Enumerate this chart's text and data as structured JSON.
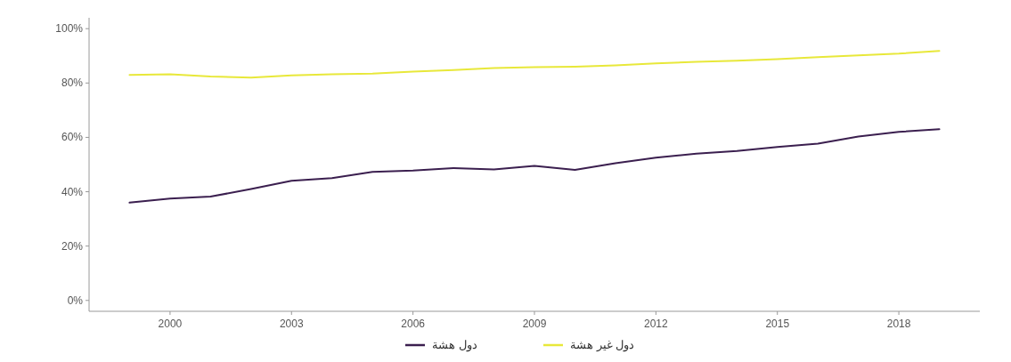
{
  "chart_data": {
    "type": "line",
    "x": [
      1999,
      2000,
      2001,
      2002,
      2003,
      2004,
      2005,
      2006,
      2007,
      2008,
      2009,
      2010,
      2011,
      2012,
      2013,
      2014,
      2015,
      2016,
      2017,
      2018,
      2019
    ],
    "series": [
      {
        "name": "دول هشة",
        "color": "#3b1f4f",
        "values": [
          36,
          37.5,
          38.2,
          41,
          44,
          45,
          47.3,
          47.8,
          48.7,
          48.2,
          49.5,
          48,
          50.5,
          52.5,
          54,
          55,
          56.5,
          57.7,
          60.3,
          62,
          63
        ]
      },
      {
        "name": "دول غير هشة",
        "color": "#e8e83a",
        "values": [
          83,
          83.2,
          82.4,
          82,
          82.8,
          83.2,
          83.5,
          84.2,
          84.8,
          85.5,
          85.8,
          86,
          86.5,
          87.2,
          87.8,
          88.2,
          88.8,
          89.5,
          90.2,
          90.8,
          91.8
        ]
      }
    ],
    "xlim": [
      1998,
      2020
    ],
    "xticks": [
      2000,
      2003,
      2006,
      2009,
      2012,
      2015,
      2018
    ],
    "ylim": [
      -4,
      104
    ],
    "yticks": [
      {
        "value": 0,
        "label": "0%"
      },
      {
        "value": 20,
        "label": "20%"
      },
      {
        "value": 40,
        "label": "40%"
      },
      {
        "value": 60,
        "label": "60%"
      },
      {
        "value": 80,
        "label": "80%"
      },
      {
        "value": 100,
        "label": "100%"
      }
    ],
    "grid": false,
    "legend": "bottom",
    "marker": "none",
    "line_style": "solid"
  }
}
